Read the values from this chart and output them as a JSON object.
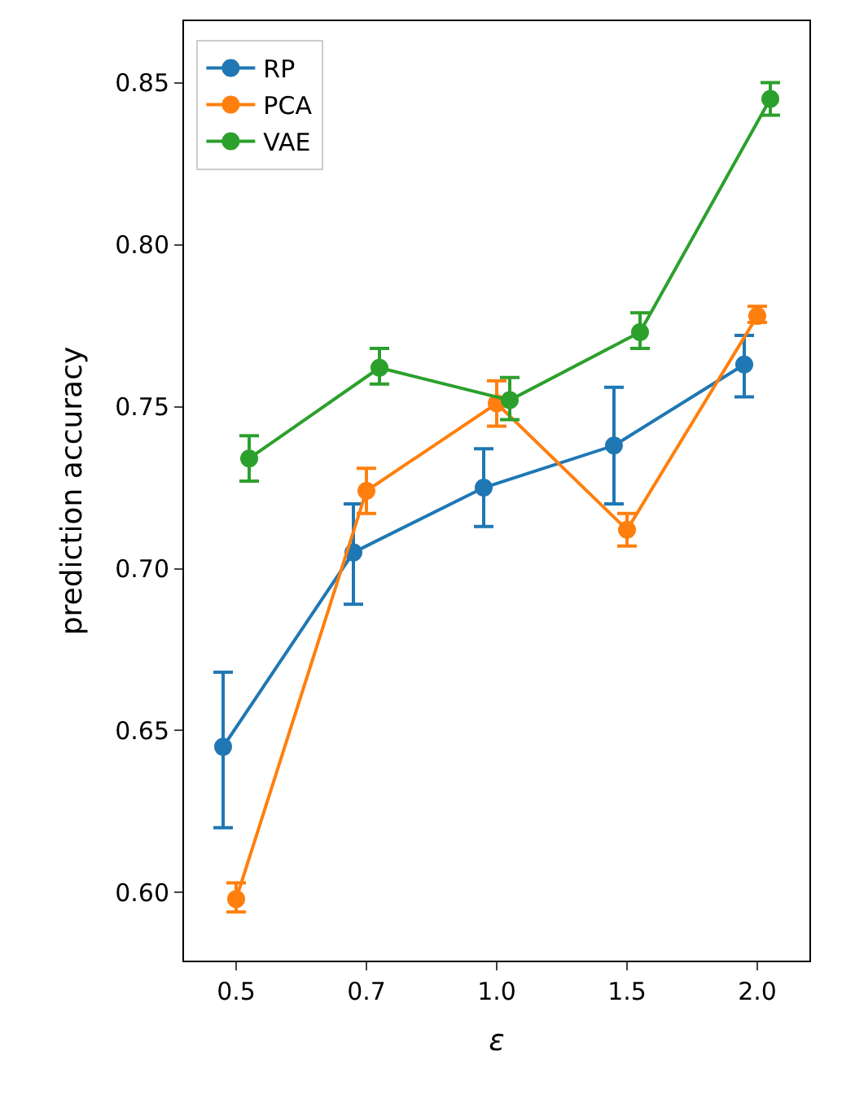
{
  "chart_data": {
    "type": "line",
    "xlabel": "ε",
    "ylabel": "prediction accuracy",
    "categories": [
      "0.5",
      "0.7",
      "1.0",
      "1.5",
      "2.0"
    ],
    "ylim": [
      0.579,
      0.869
    ],
    "yticks": [
      {
        "value": 0.6,
        "label": "0.60"
      },
      {
        "value": 0.65,
        "label": "0.65"
      },
      {
        "value": 0.7,
        "label": "0.70"
      },
      {
        "value": 0.75,
        "label": "0.75"
      },
      {
        "value": 0.8,
        "label": "0.80"
      },
      {
        "value": 0.85,
        "label": "0.85"
      }
    ],
    "series": [
      {
        "name": "RP",
        "color": "#1f77b4",
        "values": [
          0.645,
          0.705,
          0.725,
          0.738,
          0.763
        ],
        "errors": [
          [
            0.62,
            0.668
          ],
          [
            0.689,
            0.72
          ],
          [
            0.713,
            0.737
          ],
          [
            0.72,
            0.756
          ],
          [
            0.753,
            0.772
          ]
        ]
      },
      {
        "name": "PCA",
        "color": "#ff7f0e",
        "values": [
          0.598,
          0.724,
          0.751,
          0.712,
          0.778
        ],
        "errors": [
          [
            0.594,
            0.603
          ],
          [
            0.717,
            0.731
          ],
          [
            0.744,
            0.758
          ],
          [
            0.707,
            0.717
          ],
          [
            0.776,
            0.781
          ]
        ]
      },
      {
        "name": "VAE",
        "color": "#2ca02c",
        "values": [
          0.734,
          0.762,
          0.752,
          0.773,
          0.845
        ],
        "errors": [
          [
            0.727,
            0.741
          ],
          [
            0.757,
            0.768
          ],
          [
            0.746,
            0.759
          ],
          [
            0.768,
            0.779
          ],
          [
            0.84,
            0.85
          ]
        ]
      }
    ],
    "marker": "circle",
    "line_style": "solid",
    "legend": "top left"
  }
}
